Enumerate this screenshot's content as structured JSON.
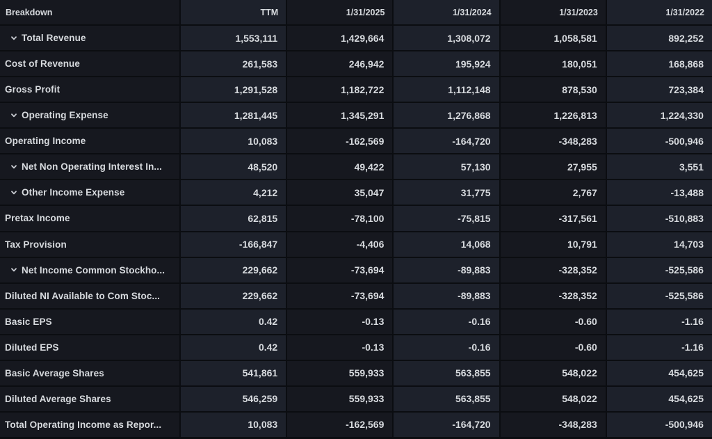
{
  "colors": {
    "page_background": "#0c0e12",
    "cell_dark": "#16181f",
    "cell_light": "#1d212b",
    "grid_line": "#0b0d11",
    "text": "#d7dade"
  },
  "icons": {
    "expand_row": "chevron-down"
  },
  "table": {
    "columns": [
      "Breakdown",
      "TTM",
      "1/31/2025",
      "1/31/2024",
      "1/31/2023",
      "1/31/2022"
    ],
    "rows": [
      {
        "label": "Total Revenue",
        "expandable": true,
        "values": [
          "1,553,111",
          "1,429,664",
          "1,308,072",
          "1,058,581",
          "892,252"
        ]
      },
      {
        "label": "Cost of Revenue",
        "expandable": false,
        "values": [
          "261,583",
          "246,942",
          "195,924",
          "180,051",
          "168,868"
        ]
      },
      {
        "label": "Gross Profit",
        "expandable": false,
        "values": [
          "1,291,528",
          "1,182,722",
          "1,112,148",
          "878,530",
          "723,384"
        ]
      },
      {
        "label": "Operating Expense",
        "expandable": true,
        "values": [
          "1,281,445",
          "1,345,291",
          "1,276,868",
          "1,226,813",
          "1,224,330"
        ]
      },
      {
        "label": "Operating Income",
        "expandable": false,
        "values": [
          "10,083",
          "-162,569",
          "-164,720",
          "-348,283",
          "-500,946"
        ]
      },
      {
        "label": "Net Non Operating Interest In...",
        "expandable": true,
        "values": [
          "48,520",
          "49,422",
          "57,130",
          "27,955",
          "3,551"
        ]
      },
      {
        "label": "Other Income Expense",
        "expandable": true,
        "values": [
          "4,212",
          "35,047",
          "31,775",
          "2,767",
          "-13,488"
        ]
      },
      {
        "label": "Pretax Income",
        "expandable": false,
        "values": [
          "62,815",
          "-78,100",
          "-75,815",
          "-317,561",
          "-510,883"
        ]
      },
      {
        "label": "Tax Provision",
        "expandable": false,
        "values": [
          "-166,847",
          "-4,406",
          "14,068",
          "10,791",
          "14,703"
        ]
      },
      {
        "label": "Net Income Common Stockho...",
        "expandable": true,
        "values": [
          "229,662",
          "-73,694",
          "-89,883",
          "-328,352",
          "-525,586"
        ]
      },
      {
        "label": "Diluted NI Available to Com Stoc...",
        "expandable": false,
        "values": [
          "229,662",
          "-73,694",
          "-89,883",
          "-328,352",
          "-525,586"
        ]
      },
      {
        "label": "Basic EPS",
        "expandable": false,
        "values": [
          "0.42",
          "-0.13",
          "-0.16",
          "-0.60",
          "-1.16"
        ]
      },
      {
        "label": "Diluted EPS",
        "expandable": false,
        "values": [
          "0.42",
          "-0.13",
          "-0.16",
          "-0.60",
          "-1.16"
        ]
      },
      {
        "label": "Basic Average Shares",
        "expandable": false,
        "values": [
          "541,861",
          "559,933",
          "563,855",
          "548,022",
          "454,625"
        ]
      },
      {
        "label": "Diluted Average Shares",
        "expandable": false,
        "values": [
          "546,259",
          "559,933",
          "563,855",
          "548,022",
          "454,625"
        ]
      },
      {
        "label": "Total Operating Income as Repor...",
        "expandable": false,
        "values": [
          "10,083",
          "-162,569",
          "-164,720",
          "-348,283",
          "-500,946"
        ]
      }
    ]
  }
}
